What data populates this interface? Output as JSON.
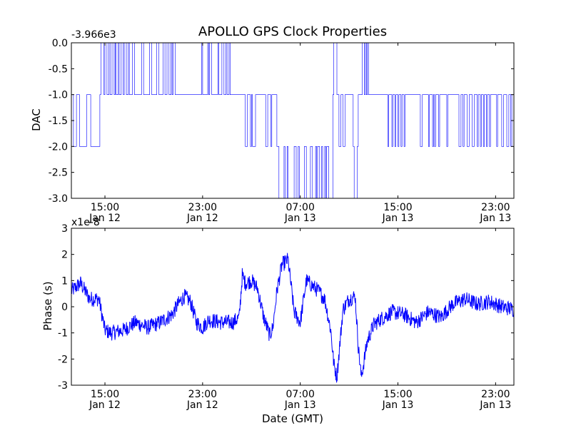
{
  "chart_data": {
    "title": "APOLLO GPS Clock Properties",
    "grid": false,
    "time_range": [
      "2013-01-12T12:15",
      "2013-01-14T00:30"
    ],
    "x_ticks": [
      {
        "t": "2013-01-12T15:00",
        "time": "15:00",
        "date": "Jan 12"
      },
      {
        "t": "2013-01-12T23:00",
        "time": "23:00",
        "date": "Jan 12"
      },
      {
        "t": "2013-01-13T07:00",
        "time": "07:00",
        "date": "Jan 13"
      },
      {
        "t": "2013-01-13T15:00",
        "time": "15:00",
        "date": "Jan 13"
      },
      {
        "t": "2013-01-13T23:00",
        "time": "23:00",
        "date": "Jan 13"
      }
    ],
    "xlabel": "Date (GMT)",
    "panels": [
      {
        "type": "line",
        "ylabel": "DAC",
        "offset_text": "-3.966e3",
        "ylim": [
          -3.0,
          0.0
        ],
        "y_ticks": [
          {
            "v": 0.0,
            "label": "0.0"
          },
          {
            "v": -0.5,
            "label": "-0.5"
          },
          {
            "v": -1.0,
            "label": "-1.0"
          },
          {
            "v": -1.5,
            "label": "-1.5"
          },
          {
            "v": -2.0,
            "label": "-2.0"
          },
          {
            "v": -2.5,
            "label": "-2.5"
          },
          {
            "v": -3.0,
            "label": "-3.0"
          }
        ],
        "color": "#0000ff",
        "stroke_width": 0.6,
        "series": [
          {
            "x": [
              "2013-01-12T12:15",
              "2013-01-12T12:25",
              "2013-01-12T12:40",
              "2013-01-12T12:55",
              "2013-01-12T13:30",
              "2013-01-12T13:50",
              "2013-01-12T14:35",
              "2013-01-12T14:40",
              "2013-01-12T14:55",
              "2013-01-12T15:00",
              "2013-01-12T15:10",
              "2013-01-12T15:20",
              "2013-01-12T15:25",
              "2013-01-12T15:35",
              "2013-01-12T15:45",
              "2013-01-12T15:50",
              "2013-01-12T15:55",
              "2013-01-12T16:05",
              "2013-01-12T16:10",
              "2013-01-12T16:20",
              "2013-01-12T16:30",
              "2013-01-12T16:35",
              "2013-01-12T16:45",
              "2013-01-12T16:55",
              "2013-01-12T17:00",
              "2013-01-12T17:15",
              "2013-01-12T17:25",
              "2013-01-12T18:00",
              "2013-01-12T18:10",
              "2013-01-12T18:40",
              "2013-01-12T18:50",
              "2013-01-12T19:15",
              "2013-01-12T19:25",
              "2013-01-12T19:45",
              "2013-01-12T19:55",
              "2013-01-12T20:05",
              "2013-01-12T20:15",
              "2013-01-12T20:25",
              "2013-01-12T20:30",
              "2013-01-12T20:35",
              "2013-01-12T20:45",
              "2013-01-12T22:55",
              "2013-01-12T23:00",
              "2013-01-12T23:25",
              "2013-01-12T23:30",
              "2013-01-12T23:35",
              "2013-01-12T23:45",
              "2013-01-13T00:15",
              "2013-01-13T00:20",
              "2013-01-13T00:35",
              "2013-01-13T00:45",
              "2013-01-13T00:55",
              "2013-01-13T01:00",
              "2013-01-13T01:10",
              "2013-01-13T01:15",
              "2013-01-13T02:30",
              "2013-01-13T02:40",
              "2013-01-13T02:55",
              "2013-01-13T03:00",
              "2013-01-13T03:05",
              "2013-01-13T03:20",
              "2013-01-13T04:10",
              "2013-01-13T04:20",
              "2013-01-13T04:35",
              "2013-01-13T04:40",
              "2013-01-13T05:05",
              "2013-01-13T05:15",
              "2013-01-13T05:40",
              "2013-01-13T05:45",
              "2013-01-13T05:55",
              "2013-01-13T06:00",
              "2013-01-13T06:30",
              "2013-01-13T06:40",
              "2013-01-13T06:50",
              "2013-01-13T06:55",
              "2013-01-13T07:20",
              "2013-01-13T07:30",
              "2013-01-13T07:50",
              "2013-01-13T08:00",
              "2013-01-13T08:15",
              "2013-01-13T08:20",
              "2013-01-13T08:25",
              "2013-01-13T08:35",
              "2013-01-13T08:45",
              "2013-01-13T08:50",
              "2013-01-13T09:00",
              "2013-01-13T09:05",
              "2013-01-13T09:10",
              "2013-01-13T09:20",
              "2013-01-13T09:40",
              "2013-01-13T09:45",
              "2013-01-13T10:00",
              "2013-01-13T10:10",
              "2013-01-13T10:20",
              "2013-01-13T10:30",
              "2013-01-13T10:40",
              "2013-01-13T11:20",
              "2013-01-13T11:25",
              "2013-01-13T11:40",
              "2013-01-13T11:45",
              "2013-01-13T12:05",
              "2013-01-13T12:15",
              "2013-01-13T12:20",
              "2013-01-13T12:25",
              "2013-01-13T12:30",
              "2013-01-13T12:35",
              "2013-01-13T14:10",
              "2013-01-13T14:15",
              "2013-01-13T14:30",
              "2013-01-13T14:35",
              "2013-01-13T14:45",
              "2013-01-13T14:50",
              "2013-01-13T15:00",
              "2013-01-13T15:05",
              "2013-01-13T15:15",
              "2013-01-13T15:20",
              "2013-01-13T15:30",
              "2013-01-13T15:35",
              "2013-01-13T16:50",
              "2013-01-13T17:00",
              "2013-01-13T17:30",
              "2013-01-13T17:35",
              "2013-01-13T17:50",
              "2013-01-13T17:55",
              "2013-01-13T18:00",
              "2013-01-13T18:05",
              "2013-01-13T18:20",
              "2013-01-13T18:25",
              "2013-01-13T19:00",
              "2013-01-13T19:05",
              "2013-01-13T20:00",
              "2013-01-13T20:10",
              "2013-01-13T20:20",
              "2013-01-13T20:25",
              "2013-01-13T20:40",
              "2013-01-13T20:50",
              "2013-01-13T21:05",
              "2013-01-13T21:15",
              "2013-01-13T21:30",
              "2013-01-13T21:35",
              "2013-01-13T21:45",
              "2013-01-13T21:50",
              "2013-01-13T22:00",
              "2013-01-13T22:05",
              "2013-01-13T22:15",
              "2013-01-13T22:20",
              "2013-01-13T22:30",
              "2013-01-13T22:35",
              "2013-01-13T23:05",
              "2013-01-13T23:10",
              "2013-01-13T23:30",
              "2013-01-13T23:40",
              "2013-01-13T23:55",
              "2013-01-14T00:05",
              "2013-01-14T00:15",
              "2013-01-14T00:20",
              "2013-01-14T00:30"
            ],
            "y": [
              -1,
              -2,
              -1,
              -2,
              -1,
              -2,
              -1,
              0,
              -1,
              0,
              -1,
              0,
              -1,
              0,
              -1,
              0,
              -1,
              0,
              -1,
              0,
              -1,
              0,
              -1,
              0,
              -1,
              0,
              -1,
              0,
              -1,
              0,
              -1,
              0,
              -1,
              0,
              -1,
              0,
              -1,
              0,
              -1,
              0,
              -1,
              0,
              -1,
              0,
              -1,
              0,
              -1,
              0,
              -1,
              0,
              -1,
              0,
              -1,
              0,
              -1,
              -2,
              -1,
              -2,
              -1,
              -2,
              -1,
              -2,
              -1,
              -2,
              -1,
              -2,
              -3,
              -2,
              -3,
              -2,
              -3,
              -2,
              -3,
              -2,
              -3,
              -2,
              -3,
              -2,
              -3,
              -2,
              -3,
              -2,
              -3,
              -2,
              -3,
              -2,
              -3,
              -2,
              -3,
              -1,
              0,
              -1,
              -2,
              -1,
              -2,
              -1,
              -2,
              -3,
              -2,
              -1,
              0,
              -1,
              0,
              -1,
              0,
              -1,
              -2,
              -1,
              -2,
              -1,
              -2,
              -1,
              -2,
              -1,
              -2,
              -1,
              -2,
              -1,
              -2,
              -1,
              -2,
              -1,
              -2,
              -1,
              -2,
              -1,
              -2,
              -1,
              -2,
              -1,
              -2,
              -1,
              -2,
              -1,
              -2,
              -1,
              -2,
              -1,
              -2,
              -1,
              -2,
              -1,
              -2,
              -1,
              -2,
              -1,
              -2,
              -1,
              -2,
              -1,
              -2,
              -1,
              -2,
              -1,
              -2,
              -1,
              -1
            ]
          }
        ]
      },
      {
        "type": "line",
        "ylabel": "Phase (s)",
        "offset_text": "x1e-8",
        "ylim": [
          -3,
          3
        ],
        "y_ticks": [
          {
            "v": 3,
            "label": "3"
          },
          {
            "v": 2,
            "label": "2"
          },
          {
            "v": 1,
            "label": "1"
          },
          {
            "v": 0,
            "label": "0"
          },
          {
            "v": -1,
            "label": "-1"
          },
          {
            "v": -2,
            "label": "-2"
          },
          {
            "v": -3,
            "label": "-3"
          }
        ],
        "color": "#0000ff",
        "stroke_width": 1,
        "noise": 0.3,
        "series": [
          {
            "x": [
              "2013-01-12T12:15",
              "2013-01-12T13:00",
              "2013-01-12T13:45",
              "2013-01-12T14:30",
              "2013-01-12T15:00",
              "2013-01-12T15:30",
              "2013-01-12T16:30",
              "2013-01-12T17:30",
              "2013-01-12T18:30",
              "2013-01-12T19:30",
              "2013-01-12T20:30",
              "2013-01-12T21:00",
              "2013-01-12T21:30",
              "2013-01-12T22:00",
              "2013-01-12T22:30",
              "2013-01-12T23:00",
              "2013-01-12T23:30",
              "2013-01-13T00:30",
              "2013-01-13T01:30",
              "2013-01-13T02:00",
              "2013-01-13T02:15",
              "2013-01-13T02:30",
              "2013-01-13T03:00",
              "2013-01-13T03:30",
              "2013-01-13T04:00",
              "2013-01-13T04:30",
              "2013-01-13T04:45",
              "2013-01-13T05:05",
              "2013-01-13T05:30",
              "2013-01-13T06:00",
              "2013-01-13T06:30",
              "2013-01-13T07:00",
              "2013-01-13T07:30",
              "2013-01-13T08:00",
              "2013-01-13T08:30",
              "2013-01-13T09:00",
              "2013-01-13T09:30",
              "2013-01-13T09:45",
              "2013-01-13T10:00",
              "2013-01-13T10:30",
              "2013-01-13T11:00",
              "2013-01-13T11:30",
              "2013-01-13T11:45",
              "2013-01-13T12:00",
              "2013-01-13T12:30",
              "2013-01-13T13:00",
              "2013-01-13T13:30",
              "2013-01-13T14:30",
              "2013-01-13T15:30",
              "2013-01-13T16:30",
              "2013-01-13T17:30",
              "2013-01-13T18:30",
              "2013-01-13T19:30",
              "2013-01-13T20:30",
              "2013-01-13T21:30",
              "2013-01-13T22:30",
              "2013-01-13T23:30",
              "2013-01-14T00:30"
            ],
            "y": [
              0.6,
              0.9,
              0.3,
              0.3,
              -0.9,
              -1.0,
              -0.9,
              -0.6,
              -0.8,
              -0.6,
              -0.3,
              0.1,
              0.4,
              0.2,
              -0.6,
              -0.8,
              -0.5,
              -0.6,
              -0.6,
              -0.4,
              1.2,
              0.9,
              1.0,
              0.7,
              -0.4,
              -1.1,
              -0.8,
              0.6,
              1.6,
              1.8,
              -0.2,
              -0.6,
              1.0,
              0.8,
              0.6,
              0.3,
              -0.9,
              -2.2,
              -2.7,
              -0.1,
              0.3,
              0.4,
              -1.5,
              -2.7,
              -1.3,
              -0.7,
              -0.5,
              -0.2,
              -0.3,
              -0.6,
              -0.2,
              -0.4,
              0.1,
              0.3,
              0.1,
              0.2,
              0.0,
              -0.1
            ]
          }
        ]
      }
    ]
  }
}
